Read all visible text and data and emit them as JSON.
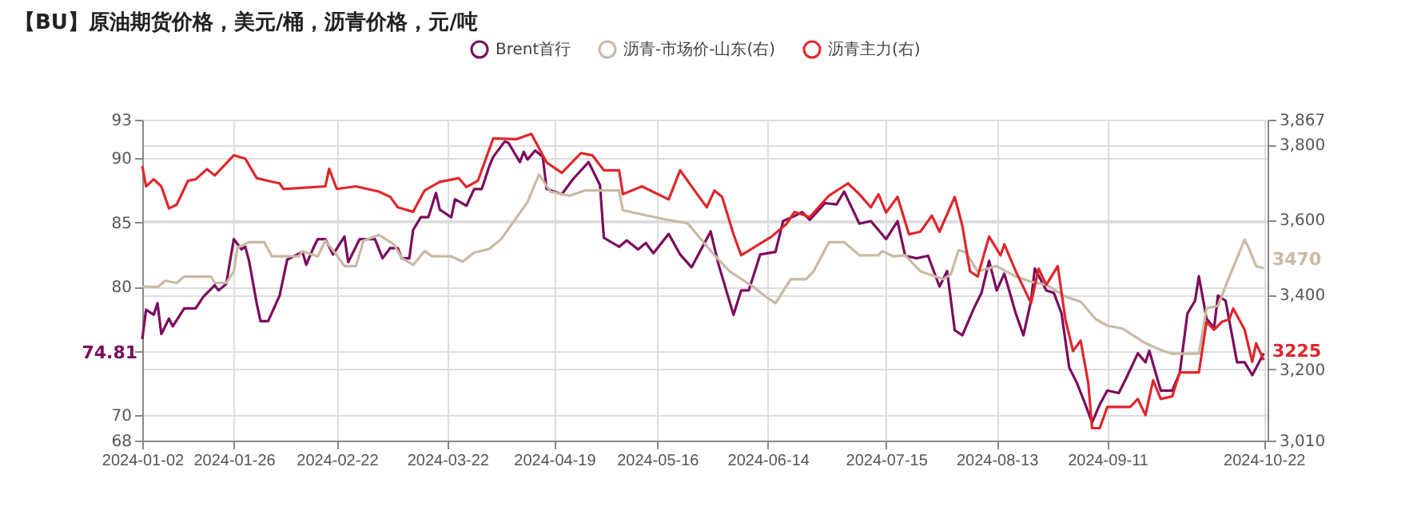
{
  "chart_data": {
    "type": "line",
    "title": "【BU】原油期货价格，美元/桶，沥青价格，元/吨",
    "legend": "top",
    "grid": true,
    "xlim": [
      "2024-01-02",
      "2024-10-23"
    ],
    "xticks": [
      "2024-01-02",
      "2024-01-26",
      "2024-02-22",
      "2024-03-22",
      "2024-04-19",
      "2024-05-16",
      "2024-06-14",
      "2024-07-15",
      "2024-08-13",
      "2024-09-11",
      "2024-10-22"
    ],
    "ylim": [
      68,
      93
    ],
    "yticks": [
      68,
      70,
      {
        "value": 75,
        "label": null
      },
      80,
      85,
      90,
      93
    ],
    "y2lim": [
      3010,
      3867
    ],
    "y2ticks": [
      {
        "value": 3010,
        "label": "3,010"
      },
      {
        "value": 3200,
        "label": "3,200"
      },
      {
        "value": 3400,
        "label": "3,400"
      },
      {
        "value": 3600,
        "label": "3,600"
      },
      {
        "value": 3800,
        "label": "3,800"
      },
      {
        "value": 3867,
        "label": "3,867"
      }
    ],
    "series": [
      {
        "name": "Brent首行",
        "color": "#7b0c5e",
        "x": [
          "2024-01-02",
          "2024-01-03",
          "2024-01-05",
          "2024-01-06",
          "2024-01-07",
          "2024-01-09",
          "2024-01-10",
          "2024-01-13",
          "2024-01-16",
          "2024-01-18",
          "2024-01-21",
          "2024-01-22",
          "2024-01-24",
          "2024-01-26",
          "2024-01-28",
          "2024-01-29",
          "2024-01-30",
          "2024-02-01",
          "2024-02-02",
          "2024-02-04",
          "2024-02-07",
          "2024-02-09",
          "2024-02-13",
          "2024-02-14",
          "2024-02-16",
          "2024-02-17",
          "2024-02-19",
          "2024-02-21",
          "2024-02-24",
          "2024-02-25",
          "2024-02-28",
          "2024-03-03",
          "2024-03-05",
          "2024-03-07",
          "2024-03-09",
          "2024-03-10",
          "2024-03-12",
          "2024-03-13",
          "2024-03-15",
          "2024-03-17",
          "2024-03-19",
          "2024-03-20",
          "2024-03-23",
          "2024-03-24",
          "2024-03-27",
          "2024-03-29",
          "2024-03-31",
          "2024-04-02",
          "2024-04-03",
          "2024-04-06",
          "2024-04-07",
          "2024-04-10",
          "2024-04-11",
          "2024-04-12",
          "2024-04-14",
          "2024-04-16",
          "2024-04-17",
          "2024-04-21",
          "2024-04-24",
          "2024-04-28",
          "2024-05-01",
          "2024-05-02",
          "2024-05-06",
          "2024-05-08",
          "2024-05-11",
          "2024-05-13",
          "2024-05-15",
          "2024-05-19",
          "2024-05-22",
          "2024-05-25",
          "2024-05-30",
          "2024-06-01",
          "2024-06-05",
          "2024-06-07",
          "2024-06-09",
          "2024-06-12",
          "2024-06-16",
          "2024-06-18",
          "2024-06-21",
          "2024-06-23",
          "2024-06-25",
          "2024-06-29",
          "2024-07-02",
          "2024-07-04",
          "2024-07-08",
          "2024-07-11",
          "2024-07-15",
          "2024-07-18",
          "2024-07-20",
          "2024-07-23",
          "2024-07-26",
          "2024-07-29",
          "2024-07-31",
          "2024-08-02",
          "2024-08-04",
          "2024-08-07",
          "2024-08-09",
          "2024-08-11",
          "2024-08-13",
          "2024-08-15",
          "2024-08-18",
          "2024-08-20",
          "2024-08-22",
          "2024-08-23",
          "2024-08-26",
          "2024-08-28",
          "2024-08-30",
          "2024-09-01",
          "2024-09-03",
          "2024-09-05",
          "2024-09-07",
          "2024-09-09",
          "2024-09-11",
          "2024-09-14",
          "2024-09-16",
          "2024-09-19",
          "2024-09-21",
          "2024-09-22",
          "2024-09-25",
          "2024-09-28",
          "2024-09-30",
          "2024-10-02",
          "2024-10-04",
          "2024-10-05",
          "2024-10-07",
          "2024-10-09",
          "2024-10-10",
          "2024-10-12",
          "2024-10-15",
          "2024-10-17",
          "2024-10-19",
          "2024-10-22"
        ],
        "values": [
          75.9,
          78.2,
          77.8,
          78.7,
          76.3,
          77.5,
          76.9,
          78.3,
          78.3,
          79.2,
          80.1,
          79.7,
          80.2,
          83.7,
          82.9,
          83.1,
          82.0,
          78.7,
          77.3,
          77.3,
          79.3,
          82.1,
          82.7,
          81.7,
          83.1,
          83.7,
          83.7,
          82.5,
          83.9,
          81.9,
          83.7,
          83.7,
          82.2,
          83.0,
          83.0,
          82.2,
          82.2,
          84.4,
          85.4,
          85.4,
          87.3,
          86.0,
          85.4,
          86.8,
          86.3,
          87.6,
          87.6,
          89.4,
          90.1,
          91.3,
          91.2,
          89.7,
          90.5,
          89.9,
          90.6,
          90.1,
          87.6,
          87.2,
          88.4,
          89.7,
          87.9,
          83.8,
          83.1,
          83.6,
          82.9,
          83.4,
          82.6,
          84.1,
          82.5,
          81.5,
          84.3,
          81.8,
          77.8,
          79.7,
          79.7,
          82.5,
          82.7,
          85.1,
          85.5,
          85.8,
          85.2,
          86.5,
          86.4,
          87.4,
          84.9,
          85.1,
          83.7,
          85.1,
          82.4,
          82.2,
          82.4,
          80.0,
          81.2,
          76.6,
          76.2,
          78.3,
          79.5,
          82.0,
          79.7,
          81.0,
          77.9,
          76.2,
          78.9,
          81.4,
          79.7,
          79.5,
          77.9,
          73.7,
          72.5,
          71.0,
          69.4,
          70.8,
          71.9,
          71.7,
          72.9,
          74.8,
          74.1,
          75.0,
          71.9,
          71.9,
          73.3,
          77.9,
          78.9,
          80.8,
          77.5,
          76.8,
          79.3,
          78.9,
          74.1,
          74.1,
          73.1,
          74.8
        ]
      },
      {
        "name": "沥青-市场价-山东(右)",
        "color": "#c9b9a5",
        "axis": "y2",
        "x": [
          "2024-01-02",
          "2024-01-06",
          "2024-01-08",
          "2024-01-11",
          "2024-01-13",
          "2024-01-20",
          "2024-01-21",
          "2024-01-24",
          "2024-01-26",
          "2024-01-27",
          "2024-01-30",
          "2024-02-03",
          "2024-02-05",
          "2024-02-12",
          "2024-02-13",
          "2024-02-17",
          "2024-02-19",
          "2024-02-22",
          "2024-02-24",
          "2024-02-27",
          "2024-02-29",
          "2024-03-04",
          "2024-03-08",
          "2024-03-10",
          "2024-03-13",
          "2024-03-16",
          "2024-03-18",
          "2024-03-23",
          "2024-03-26",
          "2024-03-29",
          "2024-04-02",
          "2024-04-05",
          "2024-04-09",
          "2024-04-12",
          "2024-04-15",
          "2024-04-18",
          "2024-04-23",
          "2024-04-27",
          "2024-05-06",
          "2024-05-07",
          "2024-05-18",
          "2024-05-24",
          "2024-05-31",
          "2024-06-04",
          "2024-06-10",
          "2024-06-13",
          "2024-06-16",
          "2024-06-20",
          "2024-06-24",
          "2024-06-26",
          "2024-06-30",
          "2024-07-04",
          "2024-07-08",
          "2024-07-13",
          "2024-07-14",
          "2024-07-17",
          "2024-07-20",
          "2024-07-24",
          "2024-07-30",
          "2024-08-01",
          "2024-08-03",
          "2024-08-05",
          "2024-08-08",
          "2024-08-13",
          "2024-08-18",
          "2024-08-22",
          "2024-08-26",
          "2024-08-31",
          "2024-09-04",
          "2024-09-08",
          "2024-09-11",
          "2024-09-15",
          "2024-09-21",
          "2024-09-25",
          "2024-09-28",
          "2024-10-05",
          "2024-10-07",
          "2024-10-10",
          "2024-10-13",
          "2024-10-17",
          "2024-10-18",
          "2024-10-20",
          "2024-10-22"
        ],
        "values": [
          3422,
          3420,
          3437,
          3431,
          3448,
          3448,
          3431,
          3431,
          3462,
          3526,
          3540,
          3540,
          3502,
          3502,
          3516,
          3502,
          3544,
          3505,
          3476,
          3476,
          3544,
          3559,
          3534,
          3498,
          3479,
          3516,
          3502,
          3502,
          3488,
          3512,
          3522,
          3547,
          3604,
          3647,
          3721,
          3675,
          3664,
          3678,
          3678,
          3625,
          3601,
          3590,
          3505,
          3462,
          3422,
          3398,
          3377,
          3441,
          3441,
          3462,
          3540,
          3540,
          3505,
          3505,
          3516,
          3502,
          3505,
          3462,
          3441,
          3455,
          3519,
          3512,
          3462,
          3476,
          3448,
          3434,
          3426,
          3395,
          3381,
          3334,
          3317,
          3309,
          3270,
          3252,
          3242,
          3242,
          3363,
          3370,
          3448,
          3547,
          3526,
          3476,
          3470
        ]
      },
      {
        "name": "沥青主力(右)",
        "color": "#e0262c",
        "axis": "y2",
        "x": [
          "2024-01-02",
          "2024-01-03",
          "2024-01-05",
          "2024-01-07",
          "2024-01-09",
          "2024-01-11",
          "2024-01-14",
          "2024-01-16",
          "2024-01-19",
          "2024-01-21",
          "2024-01-26",
          "2024-01-29",
          "2024-02-01",
          "2024-02-03",
          "2024-02-07",
          "2024-02-08",
          "2024-02-19",
          "2024-02-20",
          "2024-02-22",
          "2024-02-27",
          "2024-03-04",
          "2024-03-07",
          "2024-03-09",
          "2024-03-13",
          "2024-03-16",
          "2024-03-20",
          "2024-03-25",
          "2024-03-27",
          "2024-03-30",
          "2024-04-01",
          "2024-04-03",
          "2024-04-09",
          "2024-04-13",
          "2024-04-17",
          "2024-04-21",
          "2024-04-26",
          "2024-04-29",
          "2024-05-02",
          "2024-05-06",
          "2024-05-07",
          "2024-05-12",
          "2024-05-19",
          "2024-05-22",
          "2024-05-26",
          "2024-05-29",
          "2024-05-31",
          "2024-06-02",
          "2024-06-05",
          "2024-06-07",
          "2024-06-11",
          "2024-06-15",
          "2024-06-19",
          "2024-06-21",
          "2024-06-25",
          "2024-06-30",
          "2024-07-05",
          "2024-07-08",
          "2024-07-11",
          "2024-07-13",
          "2024-07-15",
          "2024-07-18",
          "2024-07-21",
          "2024-07-24",
          "2024-07-27",
          "2024-07-29",
          "2024-08-02",
          "2024-08-04",
          "2024-08-06",
          "2024-08-08",
          "2024-08-11",
          "2024-08-14",
          "2024-08-15",
          "2024-08-18",
          "2024-08-22",
          "2024-08-24",
          "2024-08-26",
          "2024-08-29",
          "2024-08-31",
          "2024-09-02",
          "2024-09-04",
          "2024-09-06",
          "2024-09-07",
          "2024-09-09",
          "2024-09-11",
          "2024-09-17",
          "2024-09-19",
          "2024-09-21",
          "2024-09-23",
          "2024-09-25",
          "2024-09-28",
          "2024-09-30",
          "2024-10-05",
          "2024-10-07",
          "2024-10-09",
          "2024-10-11",
          "2024-10-13",
          "2024-10-14",
          "2024-10-17",
          "2024-10-19",
          "2024-10-20",
          "2024-10-22"
        ],
        "values": [
          3743,
          3689,
          3708,
          3689,
          3630,
          3640,
          3704,
          3708,
          3735,
          3718,
          3772,
          3763,
          3711,
          3706,
          3697,
          3682,
          3689,
          3736,
          3682,
          3689,
          3675,
          3661,
          3633,
          3621,
          3678,
          3701,
          3711,
          3687,
          3704,
          3761,
          3817,
          3815,
          3829,
          3753,
          3725,
          3778,
          3772,
          3732,
          3732,
          3668,
          3689,
          3654,
          3732,
          3675,
          3633,
          3678,
          3661,
          3561,
          3505,
          3530,
          3555,
          3590,
          3621,
          3607,
          3664,
          3697,
          3668,
          3633,
          3668,
          3619,
          3661,
          3561,
          3568,
          3611,
          3568,
          3661,
          3583,
          3462,
          3448,
          3555,
          3505,
          3534,
          3462,
          3377,
          3469,
          3426,
          3476,
          3334,
          3249,
          3277,
          3164,
          3043,
          3043,
          3100,
          3100,
          3121,
          3078,
          3171,
          3121,
          3128,
          3192,
          3192,
          3327,
          3306,
          3327,
          3334,
          3363,
          3306,
          3220,
          3270,
          3225
        ]
      }
    ],
    "annotations": [
      "74.81",
      "3470",
      "3225"
    ]
  }
}
